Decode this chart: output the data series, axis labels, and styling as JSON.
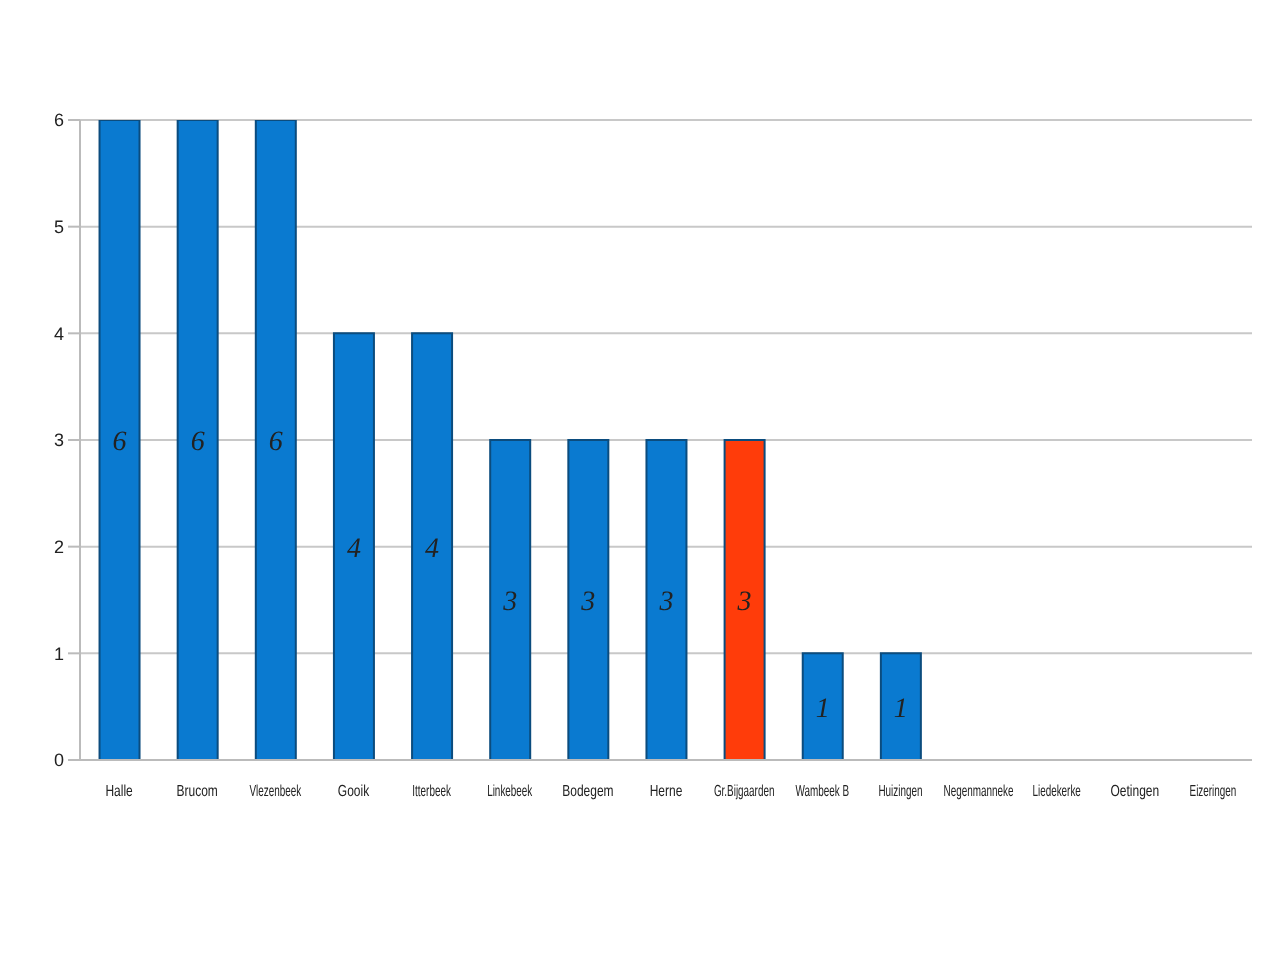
{
  "chart_data": {
    "type": "bar",
    "categories": [
      "Halle",
      "Brucom",
      "Vlezenbeek",
      "Gooik",
      "Itterbeek",
      "Linkebeek",
      "Bodegem",
      "Herne",
      "Gr.Bijgaarden",
      "Wambeek B",
      "Huizingen",
      "Negenmanneke",
      "Liedekerke",
      "Oetingen",
      "Eizeringen"
    ],
    "values": [
      6,
      6,
      6,
      4,
      4,
      3,
      3,
      3,
      3,
      1,
      1,
      0,
      0,
      0,
      0
    ],
    "value_labels": [
      "6",
      "6",
      "6",
      "4",
      "4",
      "3",
      "3",
      "3",
      "3",
      "1",
      "1",
      null,
      null,
      null,
      null
    ],
    "colors": [
      "#0a7ad0",
      "#0a7ad0",
      "#0a7ad0",
      "#0a7ad0",
      "#0a7ad0",
      "#0a7ad0",
      "#0a7ad0",
      "#0a7ad0",
      "#ff3c0a",
      "#0a7ad0",
      "#0a7ad0",
      "#0a7ad0",
      "#0a7ad0",
      "#0a7ad0",
      "#0a7ad0"
    ],
    "ylim": [
      0,
      6
    ],
    "yticks": [
      0,
      1,
      2,
      3,
      4,
      5,
      6
    ],
    "grid": "y"
  }
}
